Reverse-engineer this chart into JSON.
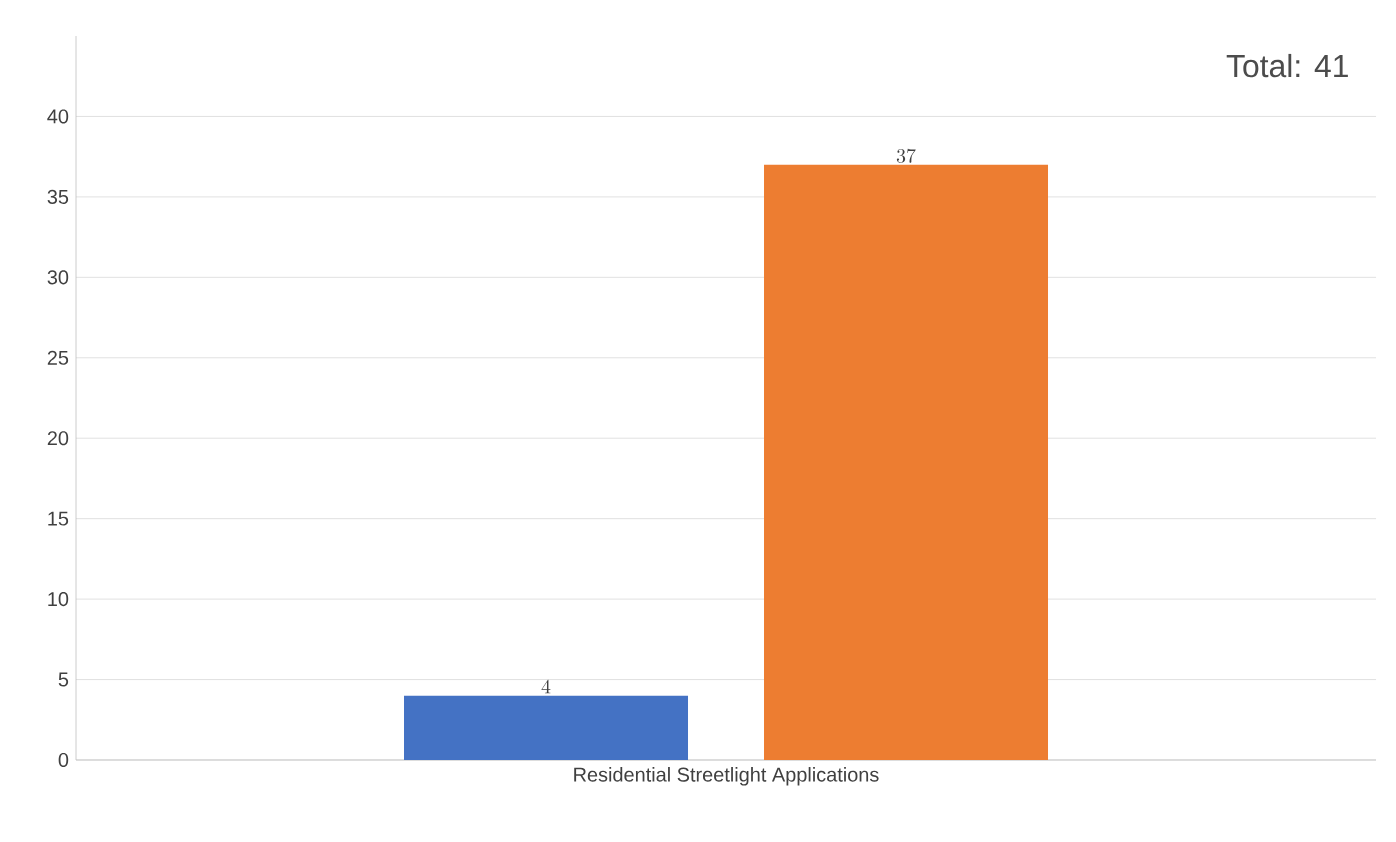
{
  "chart_data": {
    "type": "bar",
    "categories": [
      "Residential Streetlight Applications"
    ],
    "series": [
      {
        "color": "#4472c4",
        "values": [
          4
        ]
      },
      {
        "color": "#ed7d31",
        "values": [
          37
        ]
      }
    ],
    "ylim": [
      0,
      45
    ],
    "yticks": [
      0,
      5,
      10,
      15,
      20,
      25,
      30,
      35,
      40
    ],
    "grid": "y",
    "data_labels": true,
    "annotations": [
      "Total: 41"
    ]
  }
}
